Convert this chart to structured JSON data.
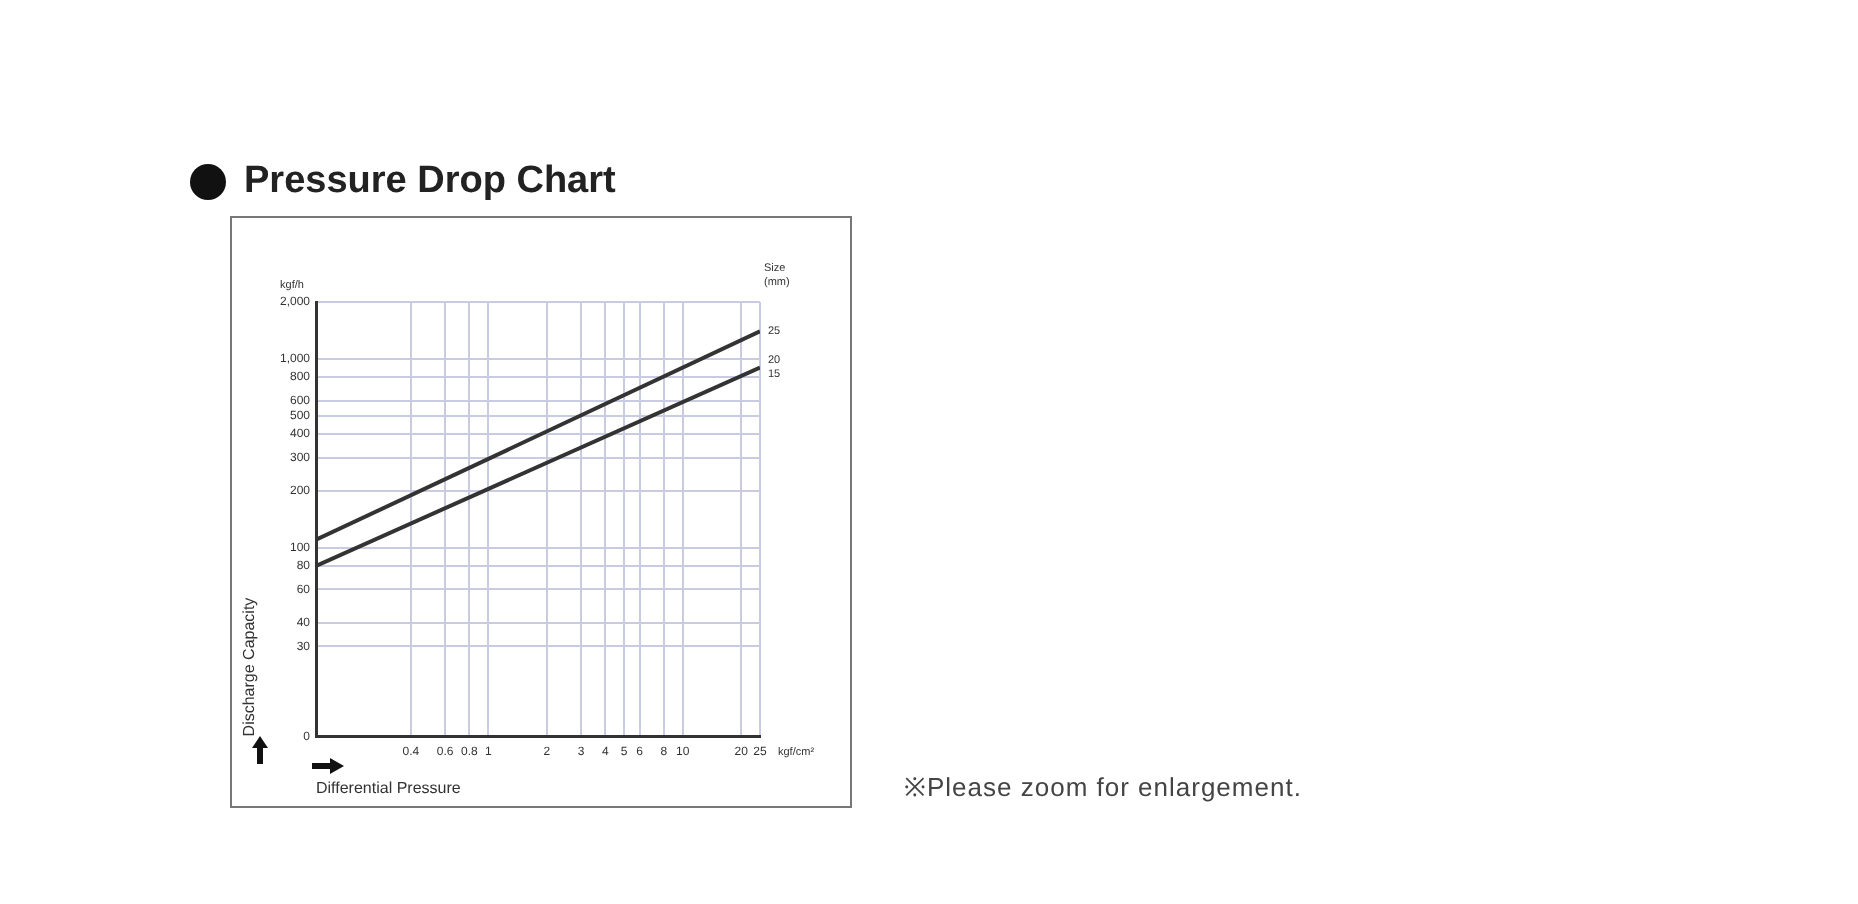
{
  "chart_data": {
    "type": "line",
    "title": "Pressure Drop Chart",
    "xlabel": "Differential Pressure",
    "ylabel": "Discharge Capacity",
    "legend_title": "Size\n(mm)",
    "annotations": [
      "kgf/h",
      "kgf/cm²",
      "※Please zoom for enlargement."
    ],
    "x": [
      0.13,
      25
    ],
    "log": "xy",
    "grid": true,
    "legend": false,
    "xlim": [
      0.13,
      25
    ],
    "xticks": [
      0.4,
      0.6,
      0.8,
      1,
      2,
      3,
      4,
      5,
      6,
      8,
      10,
      20,
      25
    ],
    "ylim": [
      0,
      2000
    ],
    "yticks": [
      0,
      30,
      40,
      60,
      80,
      100,
      200,
      300,
      400,
      500,
      600,
      800,
      {
        "value": 1000,
        "label": "1,000"
      },
      {
        "value": 2000,
        "label": "2,000"
      }
    ],
    "series": [
      {
        "name": "25",
        "color": "#333333",
        "values": [
          110,
          1400
        ]
      },
      {
        "name": "20\n15",
        "color": "#333333",
        "values": [
          80,
          900
        ]
      }
    ]
  }
}
